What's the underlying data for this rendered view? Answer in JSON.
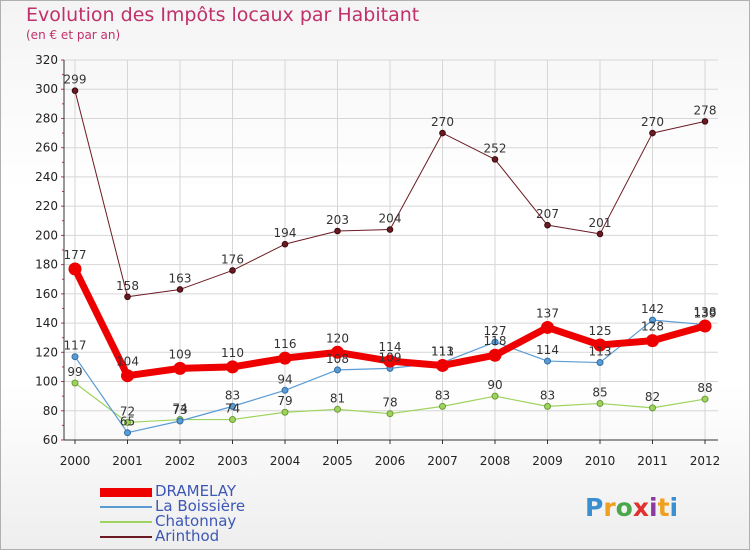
{
  "title": "Evolution des Impôts locaux par Habitant",
  "subtitle": "(en € et par an)",
  "logo_text": "Proxiti",
  "chart_data": {
    "type": "line",
    "title": "Evolution des Impôts locaux par Habitant",
    "subtitle": "(en € et par an)",
    "xlabel": "",
    "ylabel": "",
    "x": [
      2000,
      2001,
      2002,
      2003,
      2004,
      2005,
      2006,
      2007,
      2008,
      2009,
      2010,
      2011,
      2012
    ],
    "x_tick_labels": [
      "2000",
      "2001",
      "2002",
      "2003",
      "2004",
      "2005",
      "2006",
      "2007",
      "2008",
      "2009",
      "2010",
      "2011",
      "2012"
    ],
    "ylim": [
      60,
      320
    ],
    "y_ticks": [
      60,
      80,
      100,
      120,
      140,
      160,
      180,
      200,
      220,
      240,
      260,
      280,
      300,
      320
    ],
    "grid": true,
    "legend_position": "bottom-left",
    "series": [
      {
        "name": "Arinthod",
        "color": "#6b1a22",
        "values": [
          299,
          158,
          163,
          176,
          194,
          203,
          204,
          270,
          252,
          207,
          201,
          270,
          278
        ]
      },
      {
        "name": "Chatonnay",
        "color": "#9ed35d",
        "values": [
          99,
          72,
          74,
          74,
          79,
          81,
          78,
          83,
          90,
          83,
          85,
          82,
          88
        ]
      },
      {
        "name": "La Boissière",
        "color": "#5a9bd4",
        "values": [
          117,
          65,
          73,
          83,
          94,
          108,
          109,
          113,
          127,
          114,
          113,
          142,
          139
        ]
      },
      {
        "name": "DRAMELAY",
        "color": "#ee0000",
        "values": [
          177,
          104,
          109,
          110,
          116,
          120,
          114,
          111,
          118,
          137,
          125,
          128,
          138
        ]
      }
    ],
    "legend_order": [
      "DRAMELAY",
      "La Boissière",
      "Chatonnay",
      "Arinthod"
    ]
  }
}
